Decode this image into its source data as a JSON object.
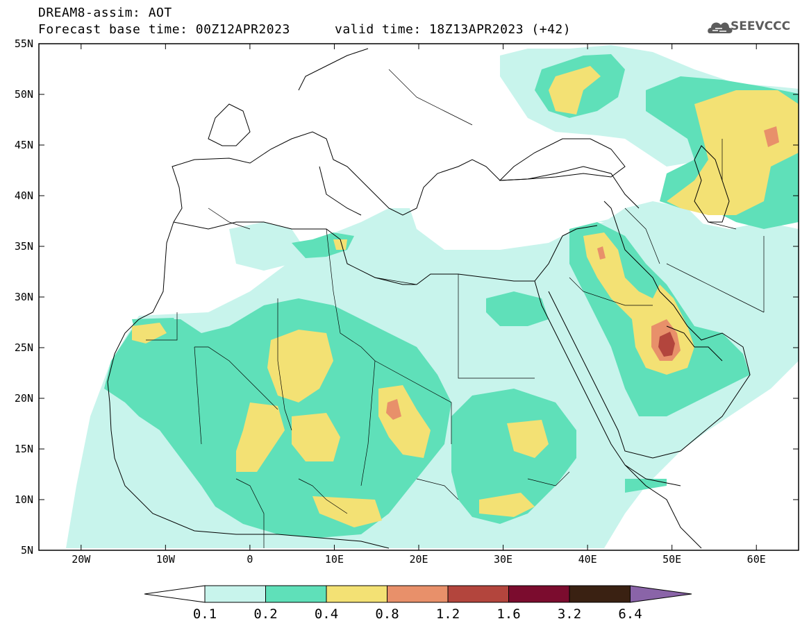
{
  "header": {
    "model_title": "DREAM8-assim: AOT",
    "base_time": "Forecast base time: 00Z12APR2023",
    "valid_time": "valid time: 18Z13APR2023 (+42)",
    "logo_text": "SEEVCCC"
  },
  "axes": {
    "lat_labels": [
      "55N",
      "50N",
      "45N",
      "40N",
      "35N",
      "30N",
      "25N",
      "20N",
      "15N",
      "10N",
      "5N"
    ],
    "lon_labels": [
      "20W",
      "10W",
      "0",
      "10E",
      "20E",
      "30E",
      "40E",
      "50E",
      "60E"
    ]
  },
  "colorbar": {
    "labels": [
      "0.1",
      "0.2",
      "0.4",
      "0.8",
      "1.2",
      "1.6",
      "3.2",
      "6.4"
    ],
    "colors": [
      "#c8f4ec",
      "#5fe0b9",
      "#f3e174",
      "#e8906a",
      "#b3453d",
      "#7b0c2e",
      "#3a2112",
      "#8a64a8"
    ]
  },
  "map": {
    "lat_range": [
      5,
      55
    ],
    "lon_range": [
      -25,
      65
    ],
    "land_color": "#ffffff",
    "line_color": "#000000"
  }
}
